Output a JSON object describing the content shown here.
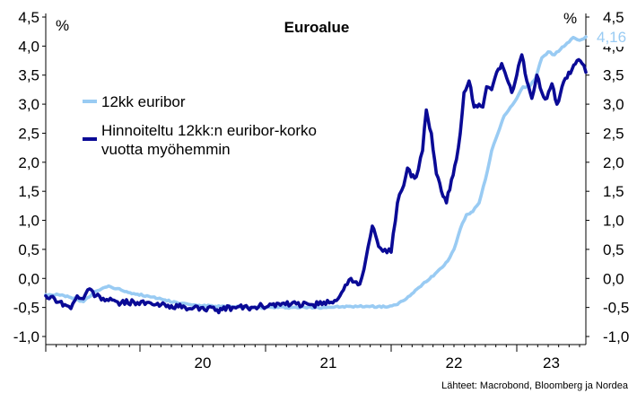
{
  "chart_data": {
    "type": "line",
    "title": "Euroalue",
    "y_unit_left": "%",
    "y_unit_right": "%",
    "ylim": [
      -1.0,
      4.5
    ],
    "y_ticks": [
      "4,5",
      "4,0",
      "3,5",
      "3,0",
      "2,5",
      "2,0",
      "1,5",
      "1,0",
      "0,5",
      "0,0",
      "-0,5",
      "-1,0"
    ],
    "y_tick_values": [
      4.5,
      4.0,
      3.5,
      3.0,
      2.5,
      2.0,
      1.5,
      1.0,
      0.5,
      0.0,
      -0.5,
      -1.0
    ],
    "x_labels": [
      "20",
      "21",
      "22",
      "23"
    ],
    "xlim": [
      2019.25,
      2023.55
    ],
    "last_value_label": "4,16",
    "source": "Lähteet: Macrobond, Bloomberg ja Nordea",
    "grid": false,
    "legend_position": "upper-left",
    "colors": {
      "light": "#99cbf3",
      "dark": "#0a0a96"
    },
    "series": [
      {
        "name": "12kk euribor",
        "color": "#99cbf3",
        "x": [
          2019.25,
          2019.35,
          2019.45,
          2019.55,
          2019.65,
          2019.75,
          2019.85,
          2019.95,
          2020.1,
          2020.2,
          2020.3,
          2020.4,
          2020.5,
          2020.6,
          2020.75,
          2020.9,
          2021.0,
          2021.2,
          2021.4,
          2021.6,
          2021.8,
          2021.95,
          2022.05,
          2022.15,
          2022.25,
          2022.35,
          2022.45,
          2022.5,
          2022.55,
          2022.6,
          2022.65,
          2022.7,
          2022.75,
          2022.8,
          2022.85,
          2022.9,
          2022.95,
          2023.0,
          2023.05,
          2023.1,
          2023.15,
          2023.2,
          2023.25,
          2023.3,
          2023.35,
          2023.4,
          2023.45,
          2023.5,
          2023.55
        ],
        "y": [
          -0.28,
          -0.28,
          -0.33,
          -0.4,
          -0.22,
          -0.13,
          -0.2,
          -0.26,
          -0.32,
          -0.37,
          -0.42,
          -0.45,
          -0.47,
          -0.48,
          -0.49,
          -0.5,
          -0.5,
          -0.5,
          -0.5,
          -0.49,
          -0.48,
          -0.49,
          -0.45,
          -0.3,
          -0.1,
          0.08,
          0.3,
          0.5,
          0.85,
          1.1,
          1.15,
          1.3,
          1.7,
          2.2,
          2.5,
          2.8,
          2.95,
          3.1,
          3.3,
          3.3,
          3.45,
          3.8,
          3.9,
          3.85,
          3.95,
          4.05,
          4.15,
          4.1,
          4.16
        ]
      },
      {
        "name": "Hinnoiteltu 12kk:n euribor-korko vuotta myöhemmin",
        "color": "#0a0a96",
        "x": [
          2019.25,
          2019.32,
          2019.4,
          2019.45,
          2019.5,
          2019.55,
          2019.6,
          2019.65,
          2019.75,
          2019.85,
          2019.95,
          2020.1,
          2020.25,
          2020.4,
          2020.5,
          2020.6,
          2020.75,
          2020.9,
          2021.05,
          2021.2,
          2021.35,
          2021.45,
          2021.55,
          2021.62,
          2021.68,
          2021.75,
          2021.8,
          2021.85,
          2021.9,
          2021.95,
          2022.0,
          2022.05,
          2022.1,
          2022.13,
          2022.16,
          2022.2,
          2022.25,
          2022.28,
          2022.32,
          2022.36,
          2022.4,
          2022.44,
          2022.48,
          2022.52,
          2022.55,
          2022.58,
          2022.62,
          2022.66,
          2022.7,
          2022.73,
          2022.76,
          2022.8,
          2022.84,
          2022.88,
          2022.92,
          2022.96,
          2023.0,
          2023.04,
          2023.08,
          2023.12,
          2023.16,
          2023.2,
          2023.24,
          2023.28,
          2023.32,
          2023.36,
          2023.4,
          2023.44,
          2023.48,
          2023.52,
          2023.55
        ],
        "y": [
          -0.3,
          -0.35,
          -0.45,
          -0.52,
          -0.3,
          -0.35,
          -0.18,
          -0.3,
          -0.38,
          -0.42,
          -0.4,
          -0.45,
          -0.47,
          -0.52,
          -0.5,
          -0.55,
          -0.5,
          -0.5,
          -0.45,
          -0.45,
          -0.45,
          -0.45,
          -0.38,
          -0.2,
          0.0,
          -0.1,
          0.35,
          0.9,
          0.55,
          0.5,
          0.45,
          1.3,
          1.6,
          1.9,
          1.75,
          1.75,
          2.2,
          2.9,
          2.5,
          1.8,
          1.5,
          1.3,
          1.7,
          2.05,
          2.5,
          3.2,
          3.4,
          2.95,
          3.0,
          2.95,
          3.3,
          3.25,
          3.55,
          3.7,
          3.45,
          3.2,
          3.5,
          3.85,
          3.4,
          3.1,
          3.5,
          3.2,
          3.1,
          3.35,
          3.0,
          3.3,
          3.45,
          3.6,
          3.75,
          3.7,
          3.55
        ]
      }
    ]
  }
}
